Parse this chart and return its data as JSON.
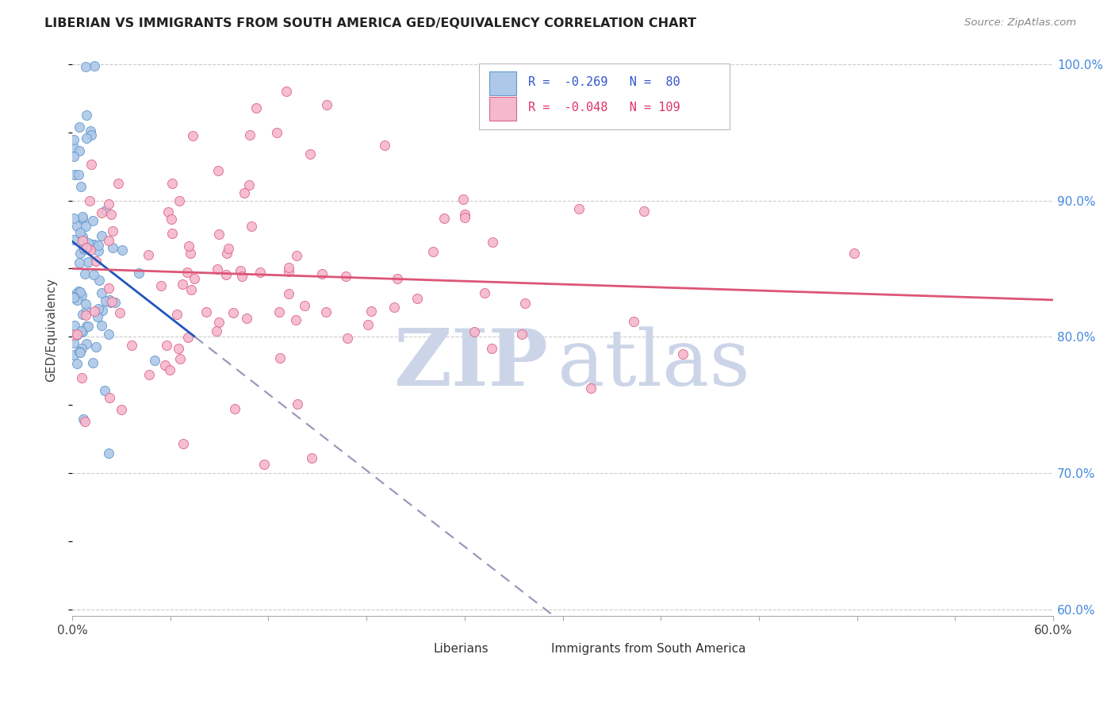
{
  "title": "LIBERIAN VS IMMIGRANTS FROM SOUTH AMERICA GED/EQUIVALENCY CORRELATION CHART",
  "source": "Source: ZipAtlas.com",
  "ylabel": "GED/Equivalency",
  "legend_r1": "-0.269",
  "legend_n1": "80",
  "legend_r2": "-0.048",
  "legend_n2": "109",
  "liberian_color": "#adc8e8",
  "south_america_color": "#f5b8cc",
  "liberian_edge": "#6699cc",
  "south_america_edge": "#dd6688",
  "trend_liberian_color": "#2255bb",
  "trend_sa_color": "#dd5577",
  "trend_dashed_color": "#9999bb",
  "watermark_zip_color": "#ccd5e8",
  "watermark_atlas_color": "#ccd5e8",
  "background": "#ffffff",
  "xlim": [
    0.0,
    0.6
  ],
  "ylim": [
    0.595,
    1.015
  ],
  "y_ticks": [
    0.6,
    0.7,
    0.8,
    0.9,
    1.0
  ],
  "y_tick_labels": [
    "60.0%",
    "70.0%",
    "80.0%",
    "90.0%",
    "100.0%"
  ]
}
